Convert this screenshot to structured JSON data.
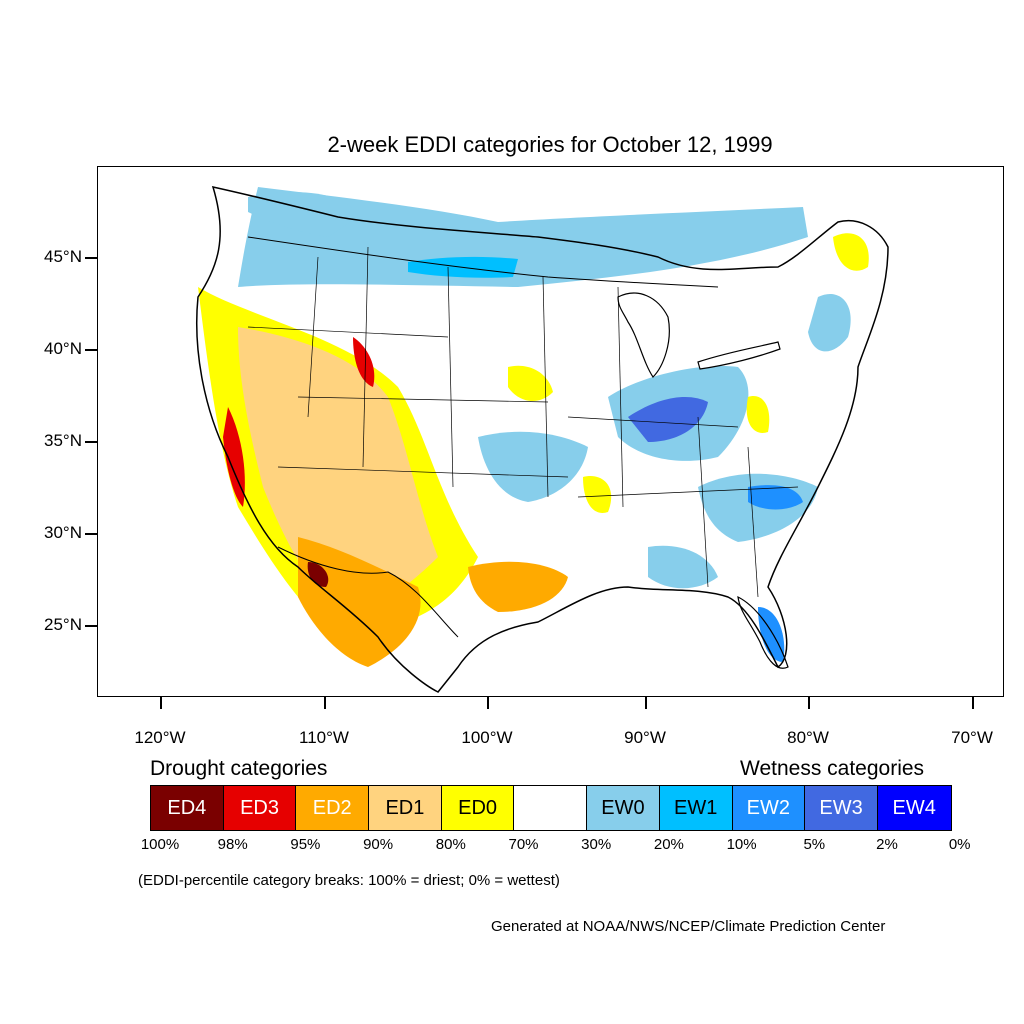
{
  "title": "2-week EDDI categories for October 12, 1999",
  "map": {
    "projection": "lambert-conformal",
    "region": "CONUS",
    "lat_ticks": [
      {
        "value": 45,
        "label": "45°N"
      },
      {
        "value": 40,
        "label": "40°N"
      },
      {
        "value": 35,
        "label": "35°N"
      },
      {
        "value": 30,
        "label": "30°N"
      },
      {
        "value": 25,
        "label": "25°N"
      }
    ],
    "lon_ticks": [
      {
        "value": -120,
        "label": "120°W"
      },
      {
        "value": -110,
        "label": "110°W"
      },
      {
        "value": -100,
        "label": "100°W"
      },
      {
        "value": -90,
        "label": "90°W"
      },
      {
        "value": -80,
        "label": "80°W"
      },
      {
        "value": -70,
        "label": "70°W"
      }
    ],
    "colors": {
      "ED4": "#7a0000",
      "ED3": "#e60000",
      "ED2": "#ffaa00",
      "ED1": "#ffd37f",
      "ED0": "#ffff00",
      "none": "#ffffff",
      "EW0": "#87ceeb",
      "EW1": "#00bfff",
      "EW2": "#1e90ff",
      "EW3": "#4169e1",
      "EW4": "#0000ff"
    }
  },
  "legend": {
    "drought_heading": "Drought categories",
    "wetness_heading": "Wetness categories",
    "categories": [
      {
        "label": "ED4",
        "color": "#7a0000",
        "text_color": "#ffffff"
      },
      {
        "label": "ED3",
        "color": "#e60000",
        "text_color": "#ffffff"
      },
      {
        "label": "ED2",
        "color": "#ffaa00",
        "text_color": "#ffffff"
      },
      {
        "label": "ED1",
        "color": "#ffd37f",
        "text_color": "#000000"
      },
      {
        "label": "ED0",
        "color": "#ffff00",
        "text_color": "#000000"
      },
      {
        "label": "",
        "color": "#ffffff",
        "text_color": "#000000"
      },
      {
        "label": "EW0",
        "color": "#87ceeb",
        "text_color": "#000000"
      },
      {
        "label": "EW1",
        "color": "#00bfff",
        "text_color": "#000000"
      },
      {
        "label": "EW2",
        "color": "#1e90ff",
        "text_color": "#ffffff"
      },
      {
        "label": "EW3",
        "color": "#4169e1",
        "text_color": "#ffffff"
      },
      {
        "label": "EW4",
        "color": "#0000ff",
        "text_color": "#ffffff"
      }
    ],
    "percent_breaks": [
      "100%",
      "98%",
      "95%",
      "90%",
      "80%",
      "70%",
      "30%",
      "20%",
      "10%",
      "5%",
      "2%",
      "0%"
    ],
    "note": "(EDDI-percentile category breaks: 100% = driest; 0% = wettest)"
  },
  "credit": "Generated at NOAA/NWS/NCEP/Climate Prediction Center"
}
